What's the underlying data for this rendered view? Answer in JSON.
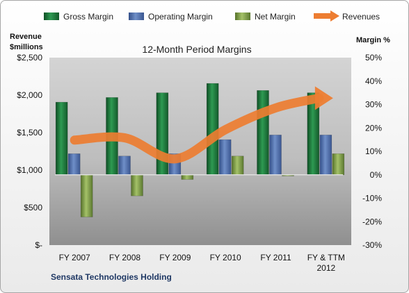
{
  "chart_data": {
    "type": "bar",
    "title": "12-Month Period Margins",
    "footer": "Sensata Technologies Holding",
    "categories": [
      "FY 2007",
      "FY 2008",
      "FY 2009",
      "FY 2010",
      "FY 2011",
      "FY & TTM 2012"
    ],
    "series": [
      {
        "name": "Gross Margin",
        "axis": "right",
        "color": "#1e7a3c",
        "values": [
          31,
          33,
          35,
          39,
          36,
          35
        ]
      },
      {
        "name": "Operating Margin",
        "axis": "right",
        "color": "#4f6fa8",
        "values": [
          9,
          8,
          9,
          15,
          17,
          17
        ]
      },
      {
        "name": "Net Margin",
        "axis": "right",
        "color": "#7a9a3d",
        "values": [
          -18,
          -9,
          -2,
          8,
          -0.5,
          9
        ]
      }
    ],
    "line_series": {
      "name": "Revenues",
      "axis": "left",
      "color": "#ed7d31",
      "values": [
        1400,
        1430,
        1150,
        1540,
        1830,
        1960
      ]
    },
    "left_axis": {
      "label_line1": "Revenue",
      "label_line2": "$millions",
      "ylim": [
        0,
        2500
      ],
      "ticks": [
        0,
        500,
        1000,
        1500,
        2000,
        2500
      ],
      "tick_labels": [
        "$-",
        "$500",
        "$1,000",
        "$1,500",
        "$2,000",
        "$2,500"
      ]
    },
    "right_axis": {
      "label": "Margin %",
      "ylim": [
        -30,
        50
      ],
      "ticks": [
        -30,
        -20,
        -10,
        0,
        10,
        20,
        30,
        40,
        50
      ],
      "tick_labels": [
        "-30%",
        "-20%",
        "-10%",
        "0%",
        "10%",
        "20%",
        "30%",
        "40%",
        "50%"
      ]
    },
    "legend_position": "top",
    "grid": false
  }
}
